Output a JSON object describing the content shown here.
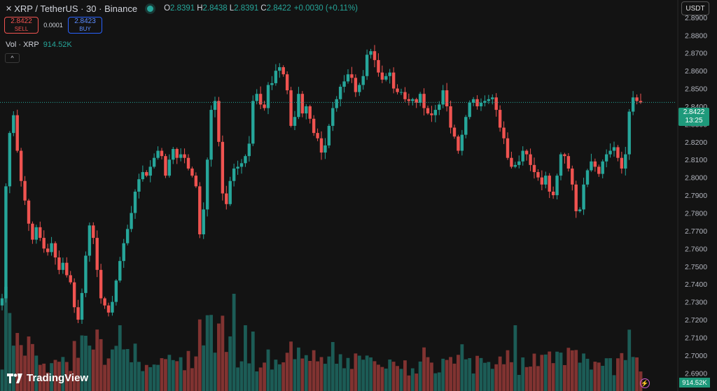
{
  "header": {
    "symbol_logo": "✕",
    "title": "XRP / TetherUS · 30 · Binance",
    "ohlc": {
      "o_label": "O",
      "o": "2.8391",
      "h_label": "H",
      "h": "2.8438",
      "l_label": "L",
      "l": "2.8391",
      "c_label": "C",
      "c": "2.8422",
      "change": "+0.0030 (+0.11%)"
    }
  },
  "trade": {
    "sell_price": "2.8422",
    "sell_label": "SELL",
    "spread": "0.0001",
    "buy_price": "2.8423",
    "buy_label": "BUY"
  },
  "volume_legend": {
    "label": "Vol · XRP",
    "value": "914.52K"
  },
  "collapse_icon": "^",
  "currency": "USDT",
  "last_price": {
    "price": "2.8422",
    "countdown": "13:25"
  },
  "volume_tag": "914.52K",
  "branding": {
    "name": "TradingView"
  },
  "colors": {
    "up": "#26a69a",
    "down": "#ef5350",
    "background": "#131313",
    "price_line": "#26a69a"
  },
  "chart_data": {
    "type": "candlestick",
    "symbol": "XRP / TetherUS",
    "interval": "30",
    "exchange": "Binance",
    "ylim": [
      2.685,
      2.899
    ],
    "y_ticks": [
      "2.8900",
      "2.8800",
      "2.8700",
      "2.8600",
      "2.8500",
      "2.8400",
      "2.8300",
      "2.8200",
      "2.8100",
      "2.8000",
      "2.7900",
      "2.7800",
      "2.7700",
      "2.7600",
      "2.7500",
      "2.7400",
      "2.7300",
      "2.7200",
      "2.7100",
      "2.7000",
      "2.6900"
    ],
    "last_price": 2.8422,
    "closes": [
      2.732,
      2.795,
      2.825,
      2.835,
      2.815,
      2.798,
      2.787,
      2.774,
      2.765,
      2.772,
      2.766,
      2.76,
      2.758,
      2.763,
      2.755,
      2.748,
      2.752,
      2.745,
      2.741,
      2.727,
      2.72,
      2.735,
      2.756,
      2.773,
      2.766,
      2.748,
      2.732,
      2.728,
      2.724,
      2.73,
      2.742,
      2.753,
      2.763,
      2.771,
      2.78,
      2.792,
      2.799,
      2.803,
      2.801,
      2.806,
      2.811,
      2.815,
      2.812,
      2.801,
      2.81,
      2.816,
      2.811,
      2.813,
      2.811,
      2.805,
      2.801,
      2.795,
      2.768,
      2.782,
      2.81,
      2.838,
      2.843,
      2.82,
      2.791,
      2.785,
      2.798,
      2.805,
      2.806,
      2.808,
      2.812,
      2.819,
      2.843,
      2.847,
      2.841,
      2.839,
      2.852,
      2.853,
      2.86,
      2.862,
      2.858,
      2.849,
      2.829,
      2.834,
      2.847,
      2.836,
      2.84,
      2.833,
      2.825,
      2.822,
      2.814,
      2.818,
      2.829,
      2.839,
      2.844,
      2.851,
      2.854,
      2.858,
      2.856,
      2.848,
      2.852,
      2.857,
      2.869,
      2.871,
      2.866,
      2.859,
      2.855,
      2.857,
      2.859,
      2.85,
      2.848,
      2.848,
      2.844,
      2.843,
      2.844,
      2.842,
      2.847,
      2.839,
      2.836,
      2.835,
      2.838,
      2.841,
      2.849,
      2.84,
      2.828,
      2.823,
      2.815,
      2.824,
      2.834,
      2.842,
      2.844,
      2.84,
      2.842,
      2.843,
      2.844,
      2.845,
      2.838,
      2.828,
      2.822,
      2.811,
      2.806,
      2.807,
      2.809,
      2.815,
      2.813,
      2.807,
      2.803,
      2.8,
      2.796,
      2.801,
      2.792,
      2.79,
      2.801,
      2.813,
      2.812,
      2.805,
      2.796,
      2.781,
      2.782,
      2.796,
      2.804,
      2.809,
      2.806,
      2.802,
      2.809,
      2.813,
      2.815,
      2.817,
      2.811,
      2.805,
      2.813,
      2.837,
      2.845,
      2.843,
      2.8422
    ],
    "volume_max": 1000000
  }
}
